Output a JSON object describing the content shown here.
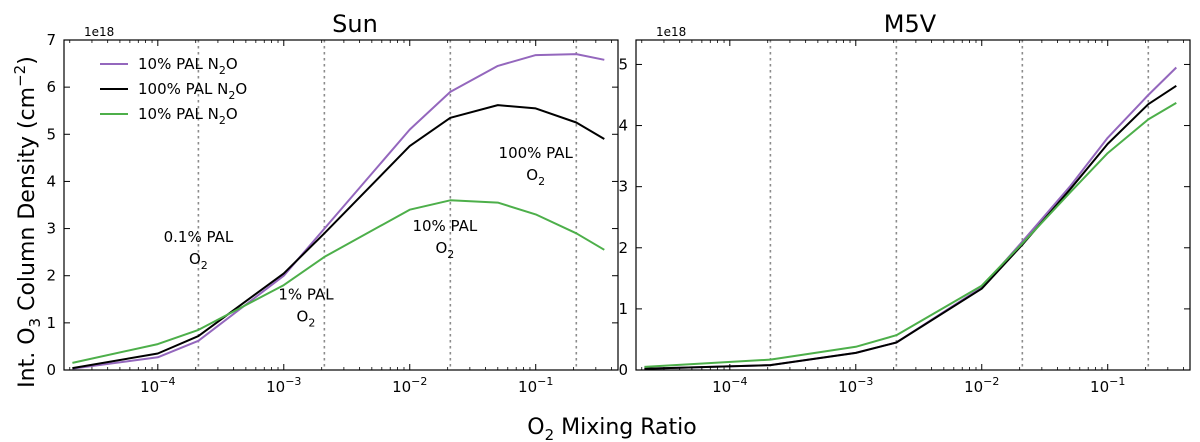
{
  "figure": {
    "ylabel_parts": [
      "Int. O",
      "3",
      " Column Density (cm",
      "−2",
      ")"
    ],
    "xlabel_parts": [
      "O",
      "2",
      " Mixing Ratio"
    ]
  },
  "chart_data": [
    {
      "type": "line",
      "title": "Sun",
      "x_scale": "log",
      "xlim": [
        1.8e-05,
        0.45
      ],
      "ylim": [
        0,
        7
      ],
      "y_multiplier": "1e18",
      "x_ticks": [
        {
          "value": 0.0001,
          "base": "10",
          "exp": "−4"
        },
        {
          "value": 0.001,
          "base": "10",
          "exp": "−3"
        },
        {
          "value": 0.01,
          "base": "10",
          "exp": "−2"
        },
        {
          "value": 0.1,
          "base": "10",
          "exp": "−1"
        }
      ],
      "y_ticks": [
        0,
        1,
        2,
        3,
        4,
        5,
        6,
        7
      ],
      "vlines": [
        0.00021,
        0.0021,
        0.021,
        0.21
      ],
      "series": [
        {
          "name": "10% PAL N2O",
          "legend_base": "10% PAL N",
          "legend_sub": "2",
          "legend_suffix": "O",
          "color": "#9467bd",
          "x": [
            2.1e-05,
            0.0001,
            0.00021,
            0.001,
            0.0021,
            0.01,
            0.021,
            0.05,
            0.1,
            0.21,
            0.35
          ],
          "y": [
            0.03,
            0.27,
            0.62,
            2.0,
            3.0,
            5.1,
            5.9,
            6.45,
            6.68,
            6.7,
            6.58
          ]
        },
        {
          "name": "100% PAL N2O",
          "legend_base": "100% PAL N",
          "legend_sub": "2",
          "legend_suffix": "O",
          "color": "#000000",
          "x": [
            2.1e-05,
            0.0001,
            0.00021,
            0.001,
            0.0021,
            0.01,
            0.021,
            0.05,
            0.1,
            0.21,
            0.35
          ],
          "y": [
            0.04,
            0.35,
            0.72,
            2.05,
            2.9,
            4.75,
            5.35,
            5.62,
            5.55,
            5.25,
            4.9
          ]
        },
        {
          "name": "10% PAL N2O",
          "legend_base": "10% PAL N",
          "legend_sub": "2",
          "legend_suffix": "O",
          "color": "#4daf4a",
          "x": [
            2.1e-05,
            0.0001,
            0.00021,
            0.001,
            0.0021,
            0.01,
            0.021,
            0.05,
            0.1,
            0.21,
            0.35
          ],
          "y": [
            0.15,
            0.55,
            0.85,
            1.8,
            2.4,
            3.4,
            3.6,
            3.55,
            3.3,
            2.9,
            2.55
          ]
        }
      ],
      "annotations": [
        {
          "line1": "0.1% PAL",
          "line2_base": "O",
          "line2_sub": "2",
          "x": 0.00021,
          "y": 2.72
        },
        {
          "line1": "1% PAL",
          "line2_base": "O",
          "line2_sub": "2",
          "x": 0.0015,
          "y": 1.5
        },
        {
          "line1": "10% PAL",
          "line2_base": "O",
          "line2_sub": "2",
          "x": 0.019,
          "y": 2.95
        },
        {
          "line1": "100% PAL",
          "line2_base": "O",
          "line2_sub": "2",
          "x": 0.1,
          "y": 4.5
        }
      ]
    },
    {
      "type": "line",
      "title": "M5V",
      "x_scale": "log",
      "xlim": [
        1.8e-05,
        0.45
      ],
      "ylim": [
        0,
        5.4
      ],
      "y_multiplier": "1e18",
      "x_ticks": [
        {
          "value": 0.0001,
          "base": "10",
          "exp": "−4"
        },
        {
          "value": 0.001,
          "base": "10",
          "exp": "−3"
        },
        {
          "value": 0.01,
          "base": "10",
          "exp": "−2"
        },
        {
          "value": 0.1,
          "base": "10",
          "exp": "−1"
        }
      ],
      "y_ticks": [
        0,
        1,
        2,
        3,
        4,
        5
      ],
      "vlines": [
        0.00021,
        0.0021,
        0.021,
        0.21
      ],
      "series": [
        {
          "name": "10% PAL N2O",
          "color": "#9467bd",
          "x": [
            2.1e-05,
            0.00021,
            0.001,
            0.0021,
            0.01,
            0.021,
            0.05,
            0.1,
            0.21,
            0.35
          ],
          "y": [
            0.02,
            0.08,
            0.28,
            0.45,
            1.35,
            2.1,
            3.0,
            3.8,
            4.5,
            4.95
          ]
        },
        {
          "name": "100% PAL N2O",
          "color": "#000000",
          "x": [
            2.1e-05,
            0.00021,
            0.001,
            0.0021,
            0.01,
            0.021,
            0.05,
            0.1,
            0.21,
            0.35
          ],
          "y": [
            0.02,
            0.08,
            0.28,
            0.45,
            1.33,
            2.05,
            2.95,
            3.7,
            4.35,
            4.65
          ]
        },
        {
          "name": "10% PAL N2O",
          "color": "#4daf4a",
          "x": [
            2.1e-05,
            0.00021,
            0.001,
            0.0021,
            0.01,
            0.021,
            0.05,
            0.1,
            0.21,
            0.35
          ],
          "y": [
            0.05,
            0.17,
            0.38,
            0.57,
            1.38,
            2.07,
            2.9,
            3.55,
            4.1,
            4.37
          ]
        }
      ]
    }
  ]
}
